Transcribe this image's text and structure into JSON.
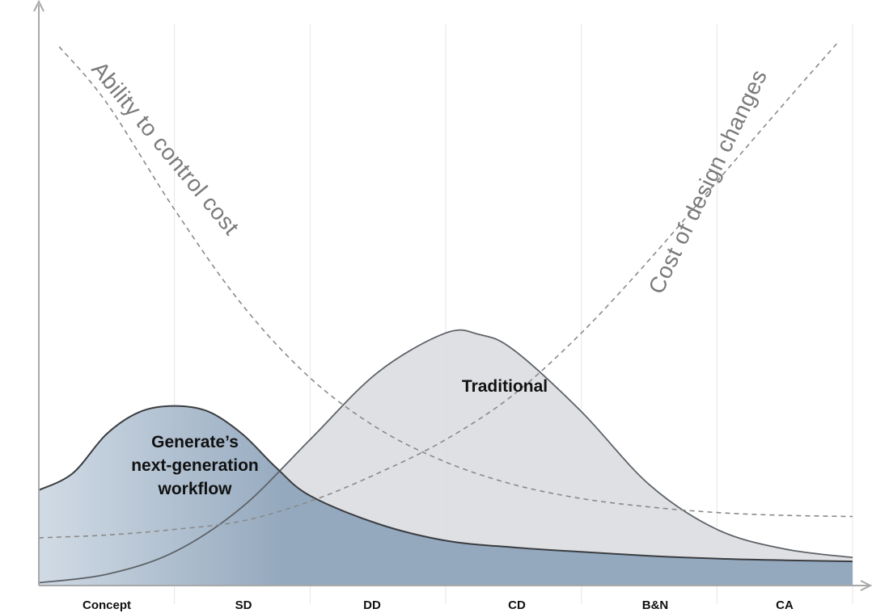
{
  "chart_data": {
    "type": "area",
    "title": "",
    "xlabel": "",
    "ylabel": "",
    "categories": [
      "Concept",
      "SD",
      "DD",
      "CD",
      "B&N",
      "CA"
    ],
    "grid": "vertical lines at phase boundaries",
    "series": [
      {
        "name": "Generate’s next-generation workflow",
        "label_lines": [
          "Generate’s",
          "next-generation",
          "workflow"
        ],
        "style": "filled area, blue-grey gradient",
        "color": "#8ea4bb",
        "x": [
          0.0,
          0.25,
          0.5,
          0.75,
          1.0,
          1.25,
          1.5,
          1.75,
          2.0,
          2.5,
          3.0,
          3.5,
          4.0,
          4.5,
          5.0,
          5.5,
          6.0
        ],
        "values": [
          0.17,
          0.2,
          0.27,
          0.31,
          0.32,
          0.31,
          0.27,
          0.21,
          0.16,
          0.11,
          0.08,
          0.068,
          0.06,
          0.053,
          0.048,
          0.045,
          0.043
        ]
      },
      {
        "name": "Traditional",
        "style": "filled area, light grey",
        "color": "#dcdde0",
        "x": [
          0.0,
          0.5,
          1.0,
          1.5,
          2.0,
          2.5,
          3.0,
          3.25,
          3.5,
          4.0,
          4.5,
          5.0,
          5.5,
          6.0
        ],
        "values": [
          0.005,
          0.02,
          0.06,
          0.14,
          0.26,
          0.38,
          0.45,
          0.447,
          0.42,
          0.31,
          0.18,
          0.1,
          0.065,
          0.05
        ]
      },
      {
        "name": "Ability to control cost",
        "style": "dashed line",
        "color": "#8a8a8a",
        "x": [
          0.15,
          0.5,
          1.0,
          1.5,
          2.0,
          2.5,
          3.0,
          3.5,
          4.0,
          4.5,
          5.0,
          5.5,
          6.0
        ],
        "values": [
          0.96,
          0.86,
          0.67,
          0.5,
          0.37,
          0.28,
          0.22,
          0.18,
          0.155,
          0.14,
          0.13,
          0.125,
          0.123
        ]
      },
      {
        "name": "Cost of design changes",
        "style": "dashed line",
        "color": "#8a8a8a",
        "x": [
          0.0,
          0.5,
          1.0,
          1.5,
          2.0,
          2.5,
          3.0,
          3.5,
          4.0,
          4.5,
          5.0,
          5.5,
          5.9
        ],
        "values": [
          0.085,
          0.09,
          0.1,
          0.115,
          0.15,
          0.2,
          0.26,
          0.34,
          0.45,
          0.58,
          0.72,
          0.86,
          0.97
        ]
      }
    ],
    "curve_labels": {
      "ability": "Ability to control cost",
      "cost": "Cost of design changes"
    }
  }
}
